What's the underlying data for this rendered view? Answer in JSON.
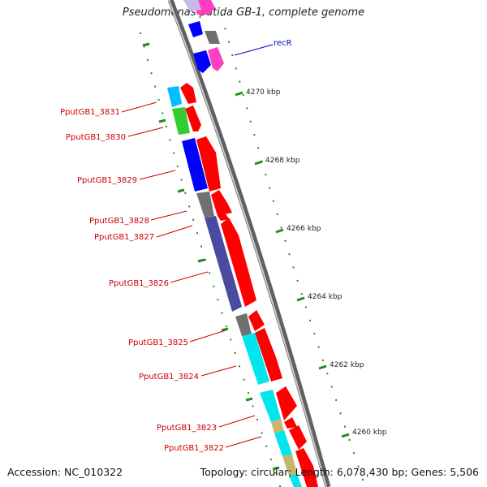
{
  "title": "Pseudomonas putida GB-1, complete genome",
  "accession": "Accession: NC_010322",
  "topology": "Topology: circular; Length: 6,078,430 bp; Genes: 5,506",
  "colors": {
    "backbone": "#808080",
    "label_red": "#cc0000",
    "label_blue": "#0000cc",
    "tick_green": "#228b22",
    "strand_red": "#ff0000",
    "magenta": "#ff3fbf",
    "blue": "#0000ff",
    "gray": "#707070",
    "cyan": "#00e5ee",
    "skyblue": "#00bfff",
    "green": "#33cc33",
    "slate": "#4a4aa0",
    "tan": "#c8b46e"
  },
  "scale_labels": [
    "4270 kbp",
    "4268 kbp",
    "4266 kbp",
    "4264 kbp",
    "4262 kbp",
    "4260 kbp"
  ],
  "gene_labels": [
    {
      "text": "recR",
      "side": "right",
      "color": "blue"
    },
    {
      "text": "PputGB1_3831",
      "side": "left",
      "color": "red"
    },
    {
      "text": "PputGB1_3830",
      "side": "left",
      "color": "red"
    },
    {
      "text": "PputGB1_3829",
      "side": "left",
      "color": "red"
    },
    {
      "text": "PputGB1_3828",
      "side": "left",
      "color": "red"
    },
    {
      "text": "PputGB1_3827",
      "side": "left",
      "color": "red"
    },
    {
      "text": "PputGB1_3826",
      "side": "left",
      "color": "red"
    },
    {
      "text": "PputGB1_3825",
      "side": "left",
      "color": "red"
    },
    {
      "text": "PputGB1_3824",
      "side": "left",
      "color": "red"
    },
    {
      "text": "PputGB1_3823",
      "side": "left",
      "color": "red"
    },
    {
      "text": "PputGB1_3822",
      "side": "left",
      "color": "red"
    }
  ]
}
